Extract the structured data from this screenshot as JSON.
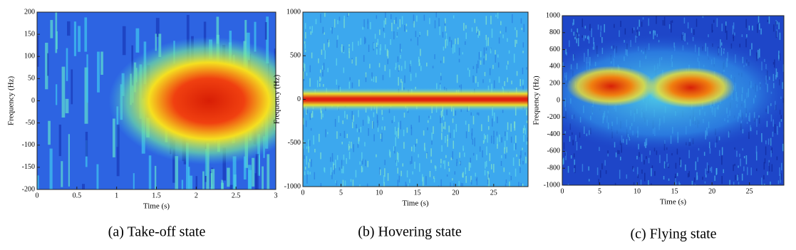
{
  "chart_data": [
    {
      "type": "heatmap",
      "caption": "(a) Take-off state",
      "x_label": "Time (s)",
      "y_label": "Frequency (Hz)",
      "xlim": [
        0,
        3
      ],
      "ylim": [
        -200,
        200
      ],
      "xticks": [
        0,
        0.5,
        1,
        1.5,
        2,
        2.5,
        3
      ],
      "yticks": [
        200,
        150,
        100,
        50,
        0,
        -50,
        -100,
        -150,
        -200
      ]
    },
    {
      "type": "heatmap",
      "caption": "(b) Hovering state",
      "x_label": "Time (s)",
      "y_label": "Frequency (Hz)",
      "xlim": [
        0,
        29.5
      ],
      "ylim": [
        -1000,
        1000
      ],
      "xticks": [
        0,
        5,
        10,
        15,
        20,
        25
      ],
      "yticks": [
        1000,
        500,
        0,
        -500,
        -1000
      ]
    },
    {
      "type": "heatmap",
      "caption": "(c) Flying state",
      "x_label": "Time (s)",
      "y_label": "Frequency (Hz)",
      "xlim": [
        0,
        29.6
      ],
      "ylim": [
        -1000,
        1000
      ],
      "xticks": [
        0,
        5,
        10,
        15,
        20,
        25
      ],
      "yticks": [
        1000,
        800,
        600,
        400,
        200,
        0,
        -200,
        -400,
        -600,
        -800,
        -1000
      ]
    }
  ]
}
